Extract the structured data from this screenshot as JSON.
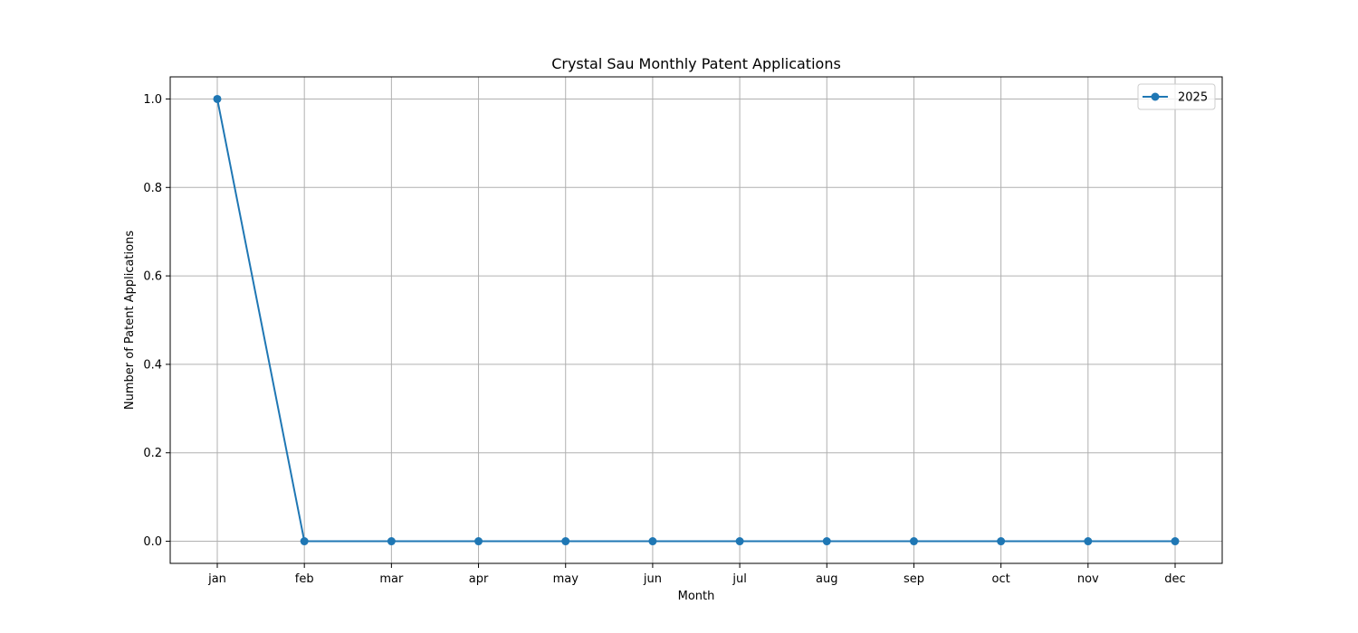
{
  "chart_data": {
    "type": "line",
    "title": "Crystal Sau Monthly Patent Applications",
    "xlabel": "Month",
    "ylabel": "Number of Patent Applications",
    "categories": [
      "jan",
      "feb",
      "mar",
      "apr",
      "may",
      "jun",
      "jul",
      "aug",
      "sep",
      "oct",
      "nov",
      "dec"
    ],
    "series": [
      {
        "name": "2025",
        "values": [
          1,
          0,
          0,
          0,
          0,
          0,
          0,
          0,
          0,
          0,
          0,
          0
        ],
        "color": "#1f77b4",
        "marker": "circle"
      }
    ],
    "ylim": [
      -0.05,
      1.05
    ],
    "yticks": [
      0.0,
      0.2,
      0.4,
      0.6,
      0.8,
      1.0
    ],
    "ytick_labels": [
      "0.0",
      "0.2",
      "0.4",
      "0.6",
      "0.8",
      "1.0"
    ],
    "grid": true,
    "legend_position": "top-right"
  }
}
